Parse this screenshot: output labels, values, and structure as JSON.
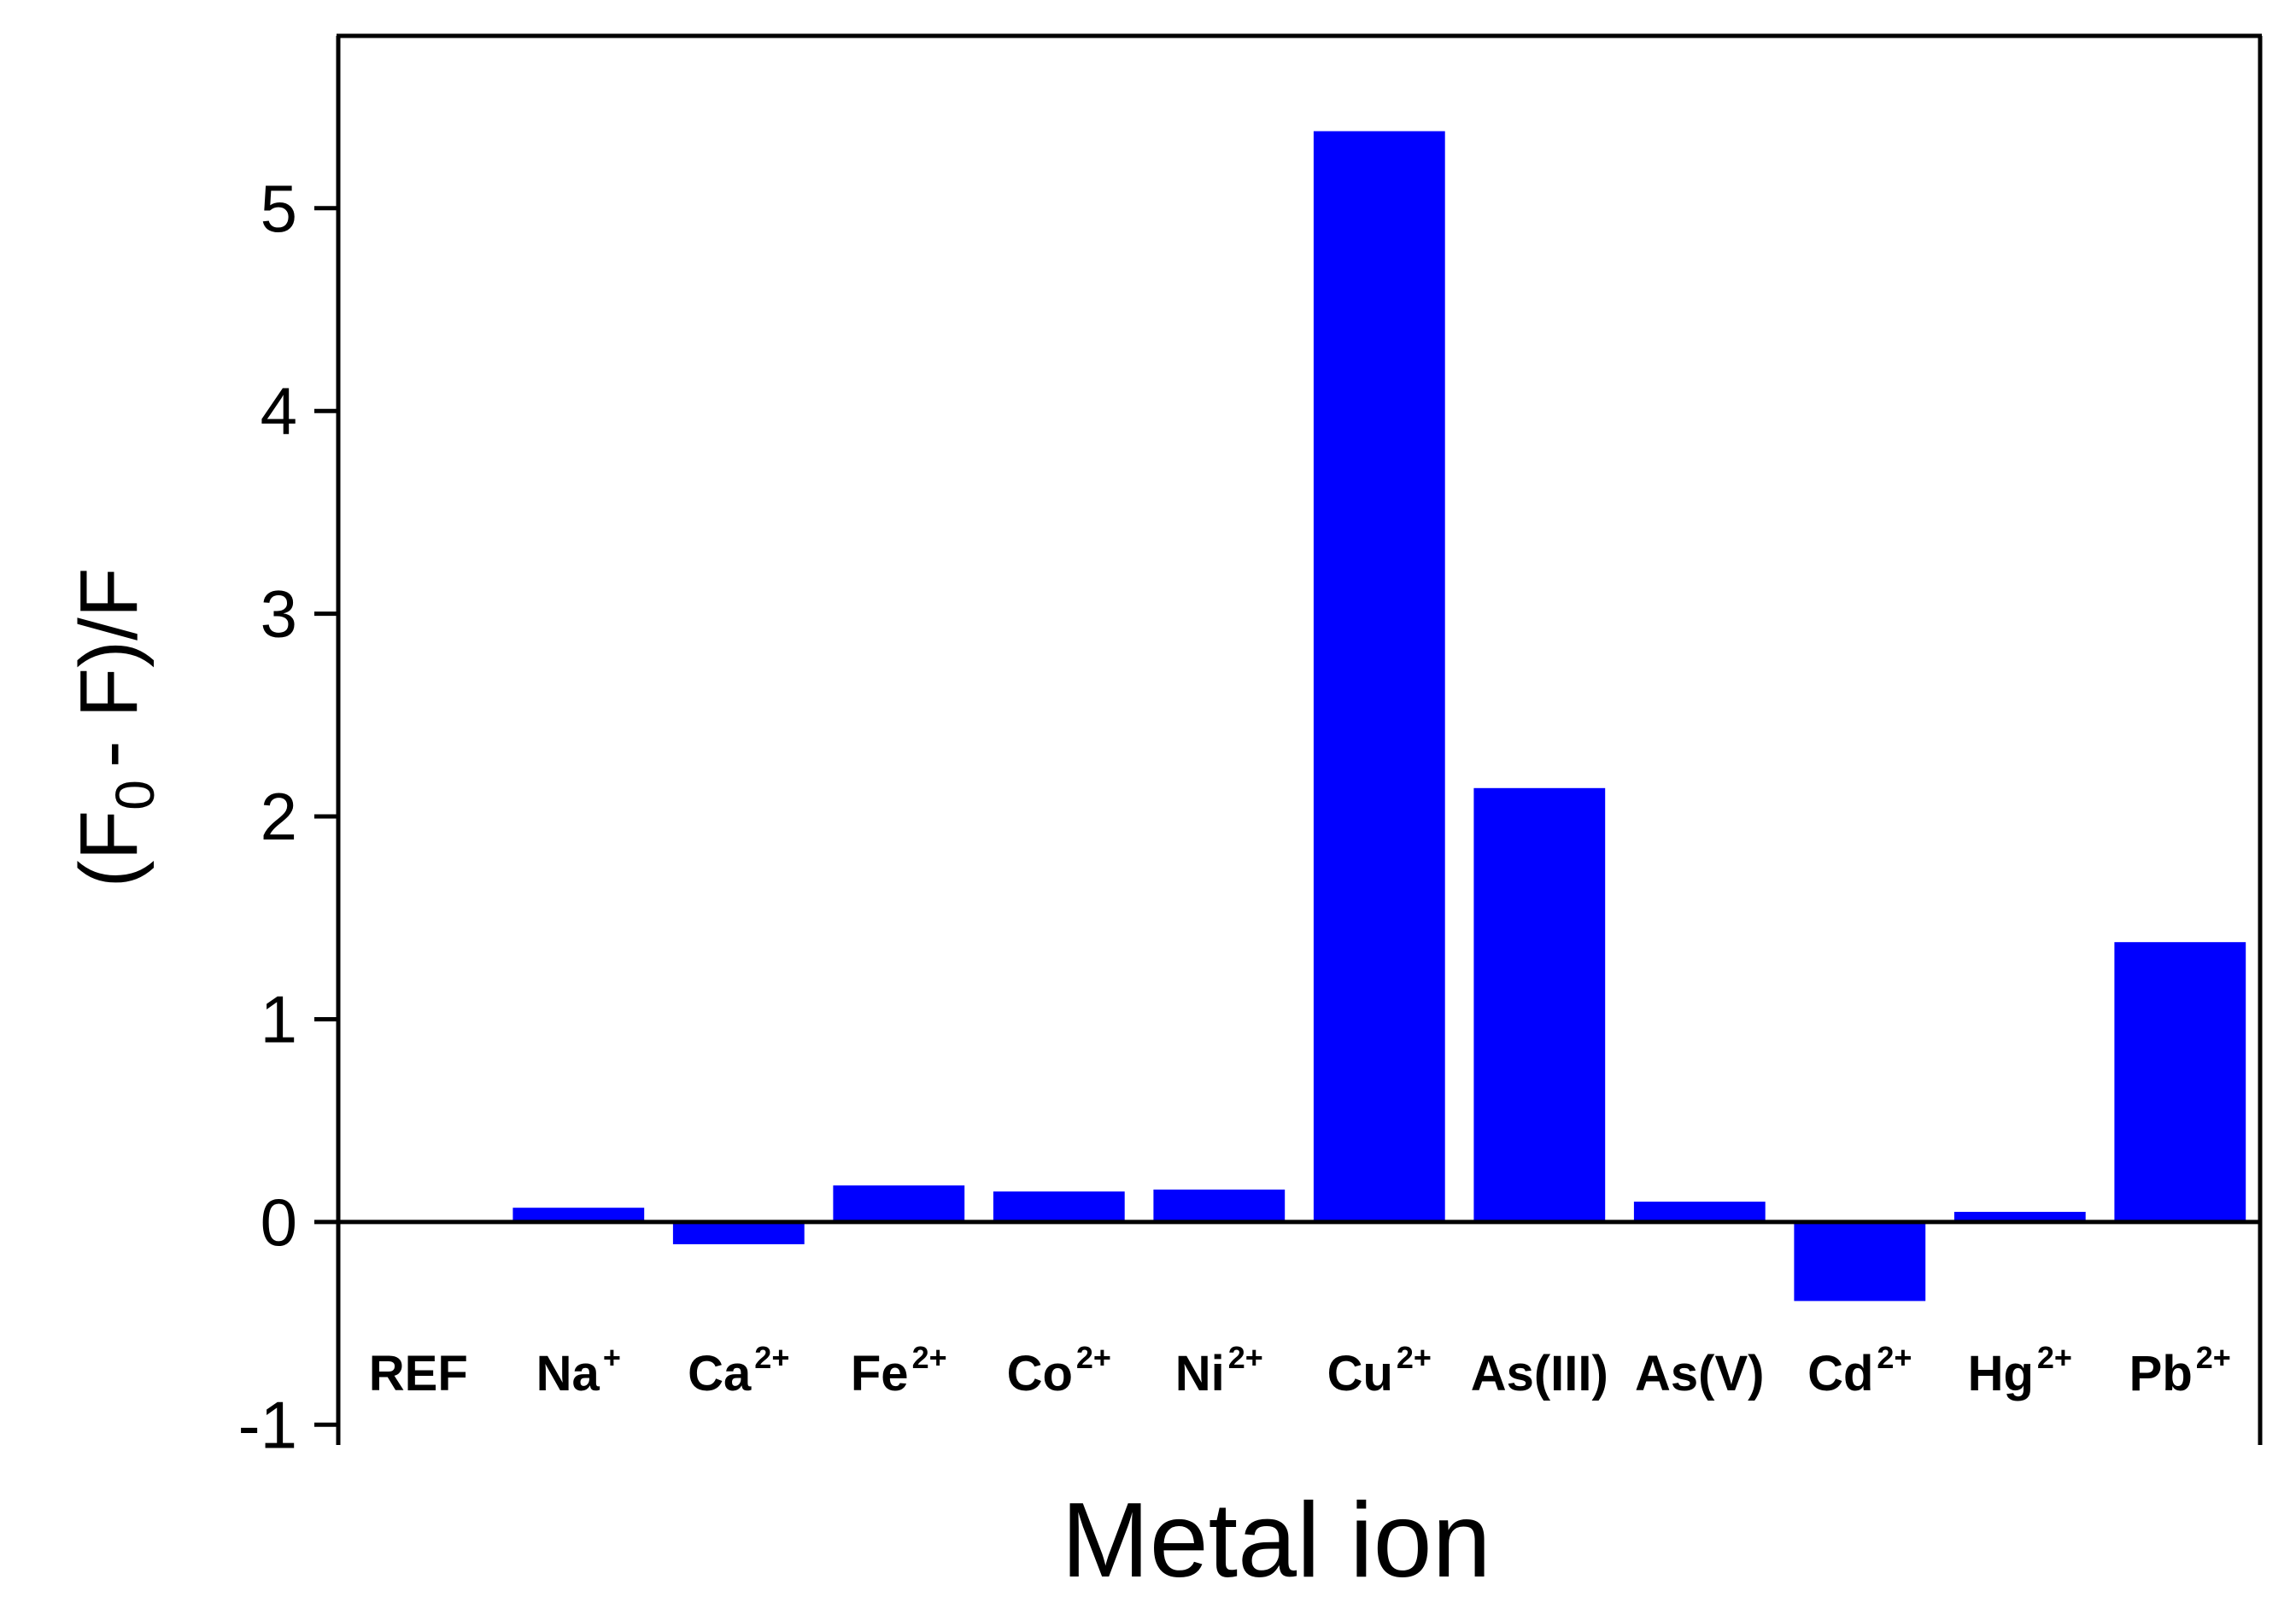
{
  "chart_data": {
    "type": "bar",
    "xlabel": "Metal ion",
    "ylabel": {
      "open": "(F",
      "subscript": "0",
      "close": "- F)/F"
    },
    "categories": [
      {
        "base": "REF",
        "sup": ""
      },
      {
        "base": "Na",
        "sup": "+"
      },
      {
        "base": "Ca",
        "sup": "2+"
      },
      {
        "base": "Fe",
        "sup": "2+"
      },
      {
        "base": "Co",
        "sup": "2+"
      },
      {
        "base": "Ni",
        "sup": "2+"
      },
      {
        "base": "Cu",
        "sup": "2+"
      },
      {
        "base": "As(III)",
        "sup": ""
      },
      {
        "base": "As(V)",
        "sup": ""
      },
      {
        "base": "Cd",
        "sup": "2+"
      },
      {
        "base": "Hg",
        "sup": "2+"
      },
      {
        "base": "Pb",
        "sup": "2+"
      }
    ],
    "values": [
      0,
      0.07,
      -0.11,
      0.18,
      0.15,
      0.16,
      5.38,
      2.14,
      0.1,
      -0.39,
      0.05,
      1.38
    ],
    "ylim": [
      -1.1,
      5.85
    ],
    "yticks": [
      -1,
      0,
      1,
      2,
      3,
      4,
      5
    ],
    "bar_color": "#0000ff",
    "axis_color": "#000000",
    "grid": false,
    "zero_line": true
  }
}
